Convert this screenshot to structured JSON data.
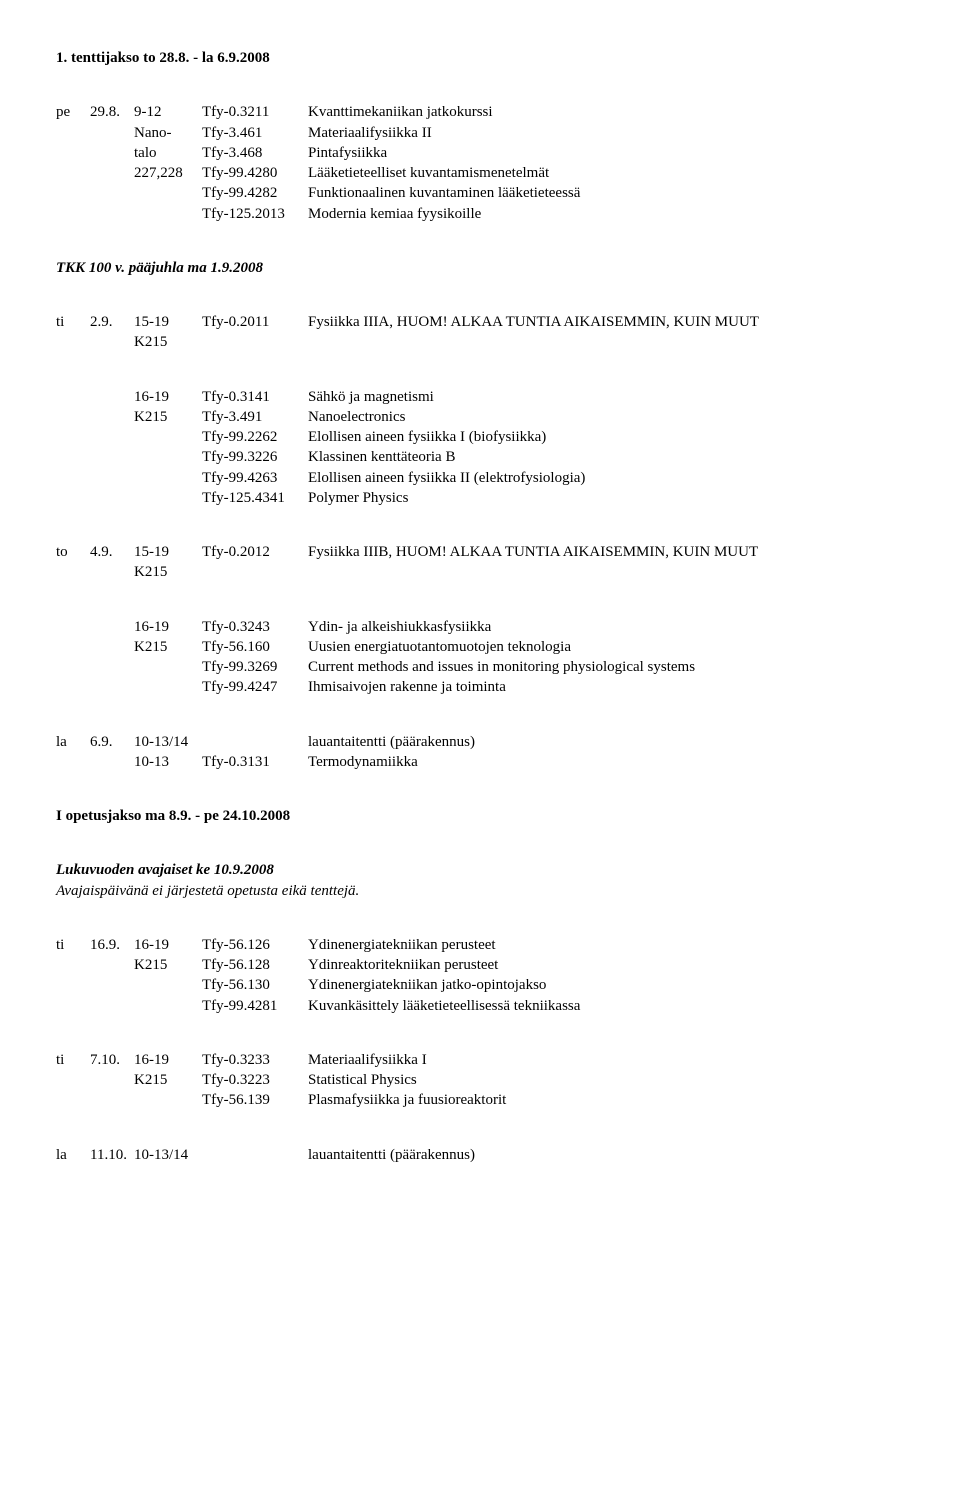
{
  "headings": {
    "h1": "1. tenttijakso to 28.8. - la 6.9.2008",
    "h2": "TKK 100 v. pääjuhla ma 1.9.2008",
    "h3": "I opetusjakso ma 8.9. - pe 24.10.2008",
    "h4": "Lukuvuoden avajaiset ke 10.9.2008",
    "h4sub": "Avajaispäivänä ei järjestetä opetusta eikä tenttejä."
  },
  "b1": {
    "r0": {
      "day": "pe",
      "date": "29.8.",
      "time": "9-12",
      "code": "Tfy-0.3211",
      "desc": "Kvanttimekaniikan jatkokurssi"
    },
    "r1": {
      "loc1": "Nano-",
      "code": "Tfy-3.461",
      "desc": "Materiaalifysiikka II"
    },
    "r2": {
      "loc1": "talo",
      "code": "Tfy-3.468",
      "desc": "Pintafysiikka"
    },
    "r3": {
      "loc1": "227,228",
      "code": "Tfy-99.4280",
      "desc": "Lääketieteelliset kuvantamismenetelmät"
    },
    "r4": {
      "code": "Tfy-99.4282",
      "desc": "Funktionaalinen kuvantaminen lääketieteessä"
    },
    "r5": {
      "code": "Tfy-125.2013",
      "desc": "Modernia kemiaa fyysikoille"
    }
  },
  "b2": {
    "r0": {
      "day": "ti",
      "date": "2.9.",
      "time": "15-19",
      "code": "Tfy-0.2011",
      "desc": "Fysiikka IIIA, HUOM! ALKAA TUNTIA AIKAISEMMIN, KUIN MUUT"
    },
    "r1": {
      "loc": "K215"
    }
  },
  "b3": {
    "r0": {
      "time": "16-19",
      "code": "Tfy-0.3141",
      "desc": "Sähkö ja magnetismi"
    },
    "r1": {
      "time": "K215",
      "code": "Tfy-3.491",
      "desc": "Nanoelectronics"
    },
    "r2": {
      "code": "Tfy-99.2262",
      "desc": "Elollisen aineen fysiikka I (biofysiikka)"
    },
    "r3": {
      "code": "Tfy-99.3226",
      "desc": "Klassinen kenttäteoria B"
    },
    "r4": {
      "code": "Tfy-99.4263",
      "desc": "Elollisen aineen fysiikka II (elektrofysiologia)"
    },
    "r5": {
      "code": "Tfy-125.4341",
      "desc": "Polymer Physics"
    }
  },
  "b4": {
    "r0": {
      "day": "to",
      "date": "4.9.",
      "time": "15-19",
      "code": "Tfy-0.2012",
      "desc": "Fysiikka IIIB, HUOM! ALKAA TUNTIA AIKAISEMMIN, KUIN MUUT"
    },
    "r1": {
      "loc": "K215"
    }
  },
  "b5": {
    "r0": {
      "time": "16-19",
      "code": "Tfy-0.3243",
      "desc": "Ydin- ja alkeishiukkasfysiikka"
    },
    "r1": {
      "time": "K215",
      "code": "Tfy-56.160",
      "desc": "Uusien energiatuotantomuotojen teknologia"
    },
    "r2": {
      "code": "Tfy-99.3269",
      "desc": "Current methods and issues in monitoring physiological systems"
    },
    "r3": {
      "code": "Tfy-99.4247",
      "desc": "Ihmisaivojen rakenne ja toiminta"
    }
  },
  "b6": {
    "r0": {
      "day": "la",
      "date": "6.9.",
      "time": "10-13/14",
      "desc": "lauantaitentti (päärakennus)"
    },
    "r1": {
      "time": "10-13",
      "code": "Tfy-0.3131",
      "desc": "Termodynamiikka"
    }
  },
  "b7": {
    "r0": {
      "day": "ti",
      "date": "16.9.",
      "time": "16-19",
      "code": "Tfy-56.126",
      "desc": "Ydinenergiatekniikan perusteet"
    },
    "r1": {
      "time": "K215",
      "code": "Tfy-56.128",
      "desc": "Ydinreaktoritekniikan perusteet"
    },
    "r2": {
      "code": "Tfy-56.130",
      "desc": "Ydinenergiatekniikan jatko-opintojakso"
    },
    "r3": {
      "code": "Tfy-99.4281",
      "desc": "Kuvankäsittely lääketieteellisessä tekniikassa"
    }
  },
  "b8": {
    "r0": {
      "day": "ti",
      "date": "7.10.",
      "time": "16-19",
      "code": "Tfy-0.3233",
      "desc": "Materiaalifysiikka I"
    },
    "r1": {
      "time": "K215",
      "code": "Tfy-0.3223",
      "desc": "Statistical Physics"
    },
    "r2": {
      "code": "Tfy-56.139",
      "desc": "Plasmafysiikka ja fuusioreaktorit"
    }
  },
  "b9": {
    "r0": {
      "day": "la",
      "date": "11.10.",
      "time": "10-13/14",
      "desc": "lauantaitentti (päärakennus)"
    }
  }
}
